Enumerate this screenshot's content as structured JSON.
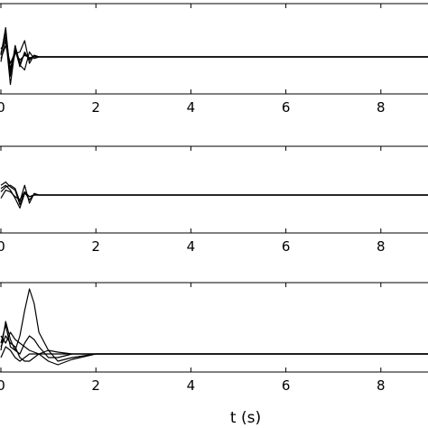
{
  "figure": {
    "xlabel": "t (s)"
  },
  "chart_data": [
    {
      "type": "line",
      "panel": 1,
      "xlim": [
        0,
        10
      ],
      "x_ticks": [
        0,
        2,
        4,
        6,
        8
      ],
      "x_tick_labels": [
        "0",
        "2",
        "4",
        "6",
        "8"
      ],
      "grid": false,
      "series": [
        {
          "x": [
            0,
            0.1,
            0.2,
            0.3,
            0.4,
            0.5,
            0.6,
            0.7,
            0.8,
            0.9,
            1.0,
            1.2,
            1.5,
            2,
            3,
            4,
            5,
            6,
            7,
            8,
            9,
            10
          ],
          "y": [
            0.1,
            1.8,
            -1.2,
            0.7,
            -0.4,
            0.2,
            -0.1,
            0.05,
            0,
            0,
            0,
            0,
            0,
            0,
            0,
            0,
            0,
            0,
            0,
            0,
            0,
            0
          ]
        },
        {
          "x": [
            0,
            0.1,
            0.2,
            0.3,
            0.4,
            0.5,
            0.6,
            0.7,
            0.8,
            0.9,
            1.0,
            1.2,
            1.5,
            2,
            3,
            4,
            5,
            6,
            7,
            8,
            9,
            10
          ],
          "y": [
            -0.3,
            1.2,
            -1.7,
            0.5,
            -0.6,
            0.3,
            -0.2,
            0.1,
            0,
            0,
            0,
            0,
            0,
            0,
            0,
            0,
            0,
            0,
            0,
            0,
            0,
            0
          ]
        },
        {
          "x": [
            0,
            0.1,
            0.2,
            0.3,
            0.4,
            0.5,
            0.6,
            0.7,
            0.8,
            0.9,
            1.0,
            1.2,
            1.5,
            2,
            3,
            4,
            5,
            6,
            7,
            8,
            9,
            10
          ],
          "y": [
            0.2,
            1.5,
            -0.9,
            0.2,
            0.3,
            1.0,
            -0.4,
            0.1,
            0,
            0,
            0,
            0,
            0,
            0,
            0,
            0,
            0,
            0,
            0,
            0,
            0,
            0
          ]
        },
        {
          "x": [
            0,
            0.1,
            0.2,
            0.3,
            0.4,
            0.5,
            0.6,
            0.7,
            0.8,
            0.9,
            1.0,
            1.2,
            1.5,
            2,
            3,
            4,
            5,
            6,
            7,
            8,
            9,
            10
          ],
          "y": [
            0.5,
            0.9,
            -0.7,
            0.4,
            -0.5,
            -0.8,
            0.3,
            -0.1,
            0,
            0,
            0,
            0,
            0,
            0,
            0,
            0,
            0,
            0,
            0,
            0,
            0,
            0
          ]
        },
        {
          "x": [
            0,
            0.1,
            0.2,
            0.3,
            0.4,
            0.5,
            0.6,
            0.7,
            0.8,
            0.9,
            1.0,
            1.2,
            1.5,
            2,
            3,
            4,
            5,
            6,
            7,
            8,
            9,
            10
          ],
          "y": [
            -0.1,
            0.7,
            -0.4,
            0.3,
            -0.2,
            0.1,
            -0.05,
            0,
            0,
            0,
            0,
            0,
            0,
            0,
            0,
            0,
            0,
            0,
            0,
            0,
            0,
            0
          ]
        }
      ]
    },
    {
      "type": "line",
      "panel": 2,
      "xlim": [
        0,
        10
      ],
      "x_ticks": [
        0,
        2,
        4,
        6,
        8
      ],
      "x_tick_labels": [
        "0",
        "2",
        "4",
        "6",
        "8"
      ],
      "grid": false,
      "series": [
        {
          "x": [
            0,
            0.1,
            0.2,
            0.3,
            0.4,
            0.5,
            0.6,
            0.7,
            0.8,
            0.9,
            1.0,
            1.2,
            1.5,
            2,
            3,
            4,
            5,
            6,
            7,
            8,
            9,
            10
          ],
          "y": [
            0.6,
            0.8,
            0.5,
            0.3,
            -0.6,
            0.2,
            -0.3,
            0.05,
            0,
            0,
            0,
            0,
            0,
            0,
            0,
            0,
            0,
            0,
            0,
            0,
            0,
            0
          ]
        },
        {
          "x": [
            0,
            0.1,
            0.2,
            0.3,
            0.4,
            0.5,
            0.6,
            0.7,
            0.8,
            0.9,
            1.0,
            1.2,
            1.5,
            2,
            3,
            4,
            5,
            6,
            7,
            8,
            9,
            10
          ],
          "y": [
            0.4,
            0.6,
            0.3,
            -0.2,
            -0.8,
            0.1,
            -0.1,
            0,
            0,
            0,
            0,
            0,
            0,
            0,
            0,
            0,
            0,
            0,
            0,
            0,
            0,
            0
          ]
        },
        {
          "x": [
            0,
            0.1,
            0.2,
            0.3,
            0.4,
            0.5,
            0.6,
            0.7,
            0.8,
            0.9,
            1.0,
            1.2,
            1.5,
            2,
            3,
            4,
            5,
            6,
            7,
            8,
            9,
            10
          ],
          "y": [
            0.2,
            0.5,
            0.6,
            0.4,
            -0.4,
            0.6,
            -0.5,
            0.1,
            0,
            0,
            0,
            0,
            0,
            0,
            0,
            0,
            0,
            0,
            0,
            0,
            0,
            0
          ]
        },
        {
          "x": [
            0,
            0.1,
            0.2,
            0.3,
            0.4,
            0.5,
            0.6,
            0.7,
            0.8,
            0.9,
            1.0,
            1.2,
            1.5,
            2,
            3,
            4,
            5,
            6,
            7,
            8,
            9,
            10
          ],
          "y": [
            -0.2,
            0.3,
            0.2,
            -0.1,
            -0.3,
            0.2,
            -0.1,
            0,
            0,
            0,
            0,
            0,
            0,
            0,
            0,
            0,
            0,
            0,
            0,
            0,
            0,
            0
          ]
        }
      ]
    },
    {
      "type": "line",
      "panel": 3,
      "xlim": [
        0,
        10
      ],
      "x_ticks": [
        0,
        2,
        4,
        6,
        8
      ],
      "x_tick_labels": [
        "0",
        "2",
        "4",
        "6",
        "8"
      ],
      "xlabel": "t (s)",
      "grid": false,
      "series": [
        {
          "x": [
            0,
            0.1,
            0.2,
            0.3,
            0.4,
            0.5,
            0.6,
            0.7,
            0.8,
            1.0,
            1.2,
            1.5,
            2,
            3,
            4,
            5,
            6,
            7,
            8,
            9,
            10
          ],
          "y": [
            0.3,
            0.8,
            0.2,
            0.1,
            0.5,
            1.2,
            1.8,
            1.4,
            0.6,
            0.1,
            -0.2,
            -0.1,
            0,
            0,
            0,
            0,
            0,
            0,
            0,
            0,
            0
          ]
        },
        {
          "x": [
            0,
            0.1,
            0.2,
            0.3,
            0.4,
            0.5,
            0.6,
            0.7,
            0.8,
            1.0,
            1.2,
            1.5,
            2,
            3,
            4,
            5,
            6,
            7,
            8,
            9,
            10
          ],
          "y": [
            0.5,
            0.3,
            0.6,
            0.4,
            0.3,
            0.2,
            0.1,
            0.05,
            0,
            -0.2,
            -0.3,
            -0.15,
            0,
            0,
            0,
            0,
            0,
            0,
            0,
            0,
            0
          ]
        },
        {
          "x": [
            0,
            0.1,
            0.2,
            0.3,
            0.4,
            0.5,
            0.6,
            0.7,
            0.8,
            1.0,
            1.2,
            1.5,
            2,
            3,
            4,
            5,
            6,
            7,
            8,
            9,
            10
          ],
          "y": [
            0.2,
            0.5,
            0.3,
            0.2,
            -0.1,
            -0.2,
            -0.2,
            -0.1,
            0,
            0.1,
            0.05,
            0,
            0,
            0,
            0,
            0,
            0,
            0,
            0,
            0,
            0
          ]
        },
        {
          "x": [
            0,
            0.1,
            0.2,
            0.3,
            0.4,
            0.5,
            0.6,
            0.7,
            0.8,
            1.0,
            1.2,
            1.5,
            2,
            3,
            4,
            5,
            6,
            7,
            8,
            9,
            10
          ],
          "y": [
            0.1,
            0.9,
            0.4,
            0.1,
            0.0,
            0.3,
            0.5,
            0.4,
            0.2,
            -0.1,
            -0.1,
            0,
            0,
            0,
            0,
            0,
            0,
            0,
            0,
            0,
            0
          ]
        },
        {
          "x": [
            0,
            0.1,
            0.2,
            0.3,
            0.4,
            0.5,
            0.6,
            0.7,
            0.8,
            1.0,
            1.2,
            1.5,
            2,
            3,
            4,
            5,
            6,
            7,
            8,
            9,
            10
          ],
          "y": [
            -0.1,
            0.2,
            0.1,
            -0.1,
            -0.2,
            -0.1,
            0,
            0,
            0,
            0,
            0,
            0,
            0,
            0,
            0,
            0,
            0,
            0,
            0,
            0,
            0
          ]
        }
      ]
    }
  ]
}
